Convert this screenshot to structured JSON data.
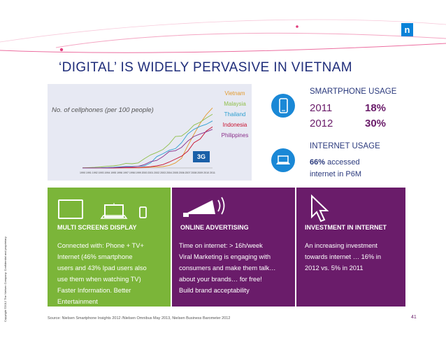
{
  "brand": {
    "logo_glyph": "n",
    "color": "#0a82d8"
  },
  "side_text": "Copyright ©2012 The Nielsen Company. Confidential and proprietary.",
  "title": "‘DIGITAL’ IS WIDELY PERVASIVE IN VIETNAM",
  "chart_data": {
    "type": "line",
    "title": "No. of cellphones (per 100 people)",
    "xlabel": "",
    "ylabel": "",
    "x": [
      "1990",
      "1991",
      "1992",
      "1993",
      "1994",
      "1995",
      "1996",
      "1997",
      "1998",
      "1999",
      "2000",
      "2001",
      "2002",
      "2003",
      "2004",
      "2005",
      "2006",
      "2007",
      "2008",
      "2009",
      "2010",
      "2011"
    ],
    "ylim": [
      0,
      180
    ],
    "legend_position": "right",
    "grid": false,
    "annotation": "3G",
    "series": [
      {
        "name": "Vietnam",
        "color": "#e39a2d",
        "values": [
          0,
          0,
          0,
          0,
          0,
          0,
          0.1,
          0.2,
          0.3,
          0.4,
          1,
          2,
          2.3,
          3.4,
          6,
          12,
          23,
          53,
          80,
          106,
          127,
          143
        ]
      },
      {
        "name": "Malaysia",
        "color": "#8fbf4a",
        "values": [
          0.5,
          1,
          1.5,
          2.5,
          4,
          5,
          7,
          11,
          10,
          12,
          22,
          31,
          37,
          44,
          57,
          75,
          76,
          87,
          102,
          109,
          119,
          128
        ]
      },
      {
        "name": "Thailand",
        "color": "#2e9fd0",
        "values": [
          0,
          0.1,
          0.3,
          0.5,
          1,
          1.5,
          2.5,
          3.5,
          3.4,
          3.8,
          5,
          12,
          27,
          34,
          42,
          46,
          60,
          81,
          92,
          99,
          104,
          112
        ]
      },
      {
        "name": "Indonesia",
        "color": "#c8102e",
        "values": [
          0,
          0,
          0,
          0,
          0,
          0,
          0.3,
          0.5,
          0.5,
          1,
          2,
          3,
          5,
          8,
          14,
          21,
          28,
          40,
          60,
          69,
          88,
          98
        ]
      },
      {
        "name": "Philippines",
        "color": "#8a2f8a",
        "values": [
          0,
          0,
          0.1,
          0.2,
          0.3,
          0.7,
          1.3,
          2.3,
          2.5,
          3.8,
          8,
          15,
          18,
          27,
          39,
          41,
          49,
          64,
          75,
          81,
          86,
          92
        ]
      }
    ]
  },
  "smartphone": {
    "title": "SMARTPHONE USAGE",
    "rows": [
      {
        "year": "2011",
        "pct": "18%"
      },
      {
        "year": "2012",
        "pct": "30%"
      }
    ]
  },
  "internet": {
    "title": "INTERNET USAGE",
    "stat_bold": "66%",
    "stat_rest": " accessed",
    "line2": "internet in P6M"
  },
  "panels": {
    "screens": {
      "head": "MULTI SCREENS DISPLAY",
      "lines": [
        "Connected with: Phone + TV+",
        "Internet (46% smartphone",
        "users and 43% Ipad users also",
        "use them when watching TV)",
        " Faster Information. Better",
        "Entertainment"
      ]
    },
    "advertising": {
      "head": "ONLINE ADVERTISING",
      "lines": [
        "Time on internet:  > 16h/week",
        " Viral Marketing is engaging with",
        "consumers and make them talk…",
        "about your brands… for free!",
        " Build brand acceptability"
      ]
    },
    "investment": {
      "head": "INVESTMENT IN INTERNET",
      "lines": [
        "An increasing investment",
        "towards internet … 16% in",
        "2012 vs. 5% in 2011"
      ]
    }
  },
  "source": "Source: Nielsen Smartphone Insights 2012 /Nielsen Omnibus May 2013, Nielsen Business Barometer 2012",
  "page_number": "41",
  "colors": {
    "green": "#7bb539",
    "purple": "#6a1c6a",
    "blue": "#1a88d6",
    "navy": "#2b3a7d"
  }
}
